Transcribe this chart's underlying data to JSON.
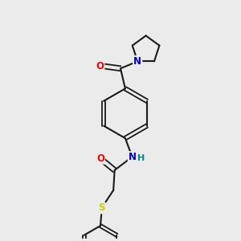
{
  "background_color": "#ebebeb",
  "bond_color": "#1a1a1a",
  "atom_colors": {
    "O": "#ff0000",
    "N": "#0000cc",
    "H": "#008888",
    "S": "#cccc00"
  },
  "figsize": [
    3.0,
    3.0
  ],
  "dpi": 100
}
